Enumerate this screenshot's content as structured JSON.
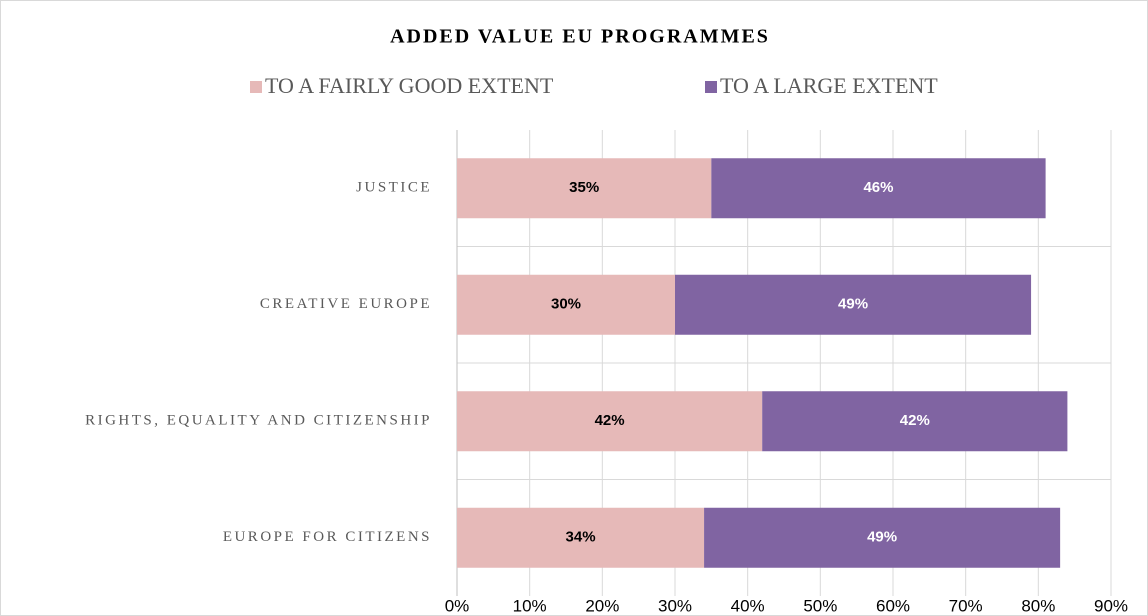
{
  "chart_data": {
    "type": "stacked_barh",
    "title": "ADDED VALUE EU PROGRAMMES",
    "categories": [
      "JUSTICE",
      "CREATIVE EUROPE",
      "RIGHTS, EQUALITY AND CITIZENSHIP",
      "EUROPE FOR CITIZENS"
    ],
    "series": [
      {
        "name": "TO A FAIRLY GOOD EXTENT",
        "color": "#e6b9b8",
        "values": [
          35,
          30,
          42,
          34
        ],
        "value_labels": [
          "35%",
          "30%",
          "42%",
          "34%"
        ]
      },
      {
        "name": "TO A LARGE EXTENT",
        "color": "#8064a2",
        "values": [
          46,
          49,
          42,
          49
        ],
        "value_labels": [
          "46%",
          "49%",
          "42%",
          "49%"
        ]
      }
    ],
    "xlim": [
      0,
      90
    ],
    "xticks": [
      {
        "value": 0,
        "label": "0%"
      },
      {
        "value": 10,
        "label": "10%"
      },
      {
        "value": 20,
        "label": "20%"
      },
      {
        "value": 30,
        "label": "30%"
      },
      {
        "value": 40,
        "label": "40%"
      },
      {
        "value": 50,
        "label": "50%"
      },
      {
        "value": 60,
        "label": "60%"
      },
      {
        "value": 70,
        "label": "70%"
      },
      {
        "value": 80,
        "label": "80%"
      },
      {
        "value": 90,
        "label": "90%"
      }
    ],
    "grid": true,
    "legend": "top"
  }
}
